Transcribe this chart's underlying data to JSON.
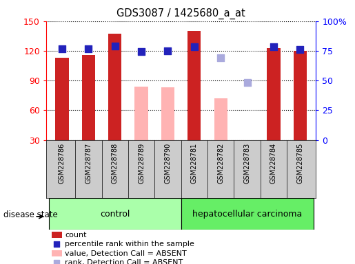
{
  "title": "GDS3087 / 1425680_a_at",
  "samples": [
    "GSM228786",
    "GSM228787",
    "GSM228788",
    "GSM228789",
    "GSM228790",
    "GSM228781",
    "GSM228782",
    "GSM228783",
    "GSM228784",
    "GSM228785"
  ],
  "bar_values": [
    113,
    116,
    137,
    84,
    83,
    140,
    72,
    30,
    123,
    120
  ],
  "bar_absent": [
    false,
    false,
    false,
    true,
    true,
    false,
    true,
    false,
    false,
    false
  ],
  "dot_values": [
    122,
    122,
    125,
    119,
    120,
    124,
    113,
    88,
    124,
    121
  ],
  "dot_absent": [
    false,
    false,
    false,
    false,
    false,
    false,
    true,
    true,
    false,
    false
  ],
  "bar_color_present": "#cc2222",
  "bar_color_absent": "#ffb3b3",
  "dot_color_present": "#2222bb",
  "dot_color_absent": "#aaaadd",
  "ylim_left": [
    30,
    150
  ],
  "ylim_right": [
    0,
    100
  ],
  "yticks_left": [
    30,
    60,
    90,
    120,
    150
  ],
  "yticks_right": [
    0,
    25,
    50,
    75,
    100
  ],
  "ytick_labels_right": [
    "0",
    "25",
    "50",
    "75",
    "100%"
  ],
  "ytick_labels_left": [
    "30",
    "60",
    "90",
    "120",
    "150"
  ],
  "control_color": "#aaffaa",
  "hep_color": "#66ee66",
  "bar_width": 0.5,
  "dot_size": 55,
  "figsize": [
    5.15,
    3.84
  ],
  "dpi": 100
}
